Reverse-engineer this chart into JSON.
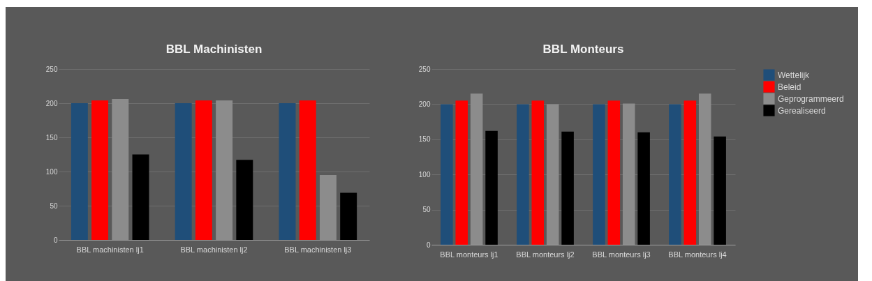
{
  "chart_data": [
    {
      "type": "bar",
      "title": "BBL Machinisten",
      "categories": [
        "BBL machinisten lj1",
        "BBL machinisten lj2",
        "BBL machinisten lj3"
      ],
      "series": [
        {
          "name": "Wettelijk",
          "color": "#1f4e79",
          "values": [
            200,
            200,
            200
          ]
        },
        {
          "name": "Beleid",
          "color": "#ff0000",
          "values": [
            204,
            204,
            204
          ]
        },
        {
          "name": "Geprogrammeerd",
          "color": "#8c8c8c",
          "values": [
            206,
            204,
            95
          ]
        },
        {
          "name": "Gerealiseerd",
          "color": "#000000",
          "values": [
            125,
            117,
            69
          ]
        }
      ],
      "ylim": [
        0,
        250
      ],
      "yticks": [
        0,
        50,
        100,
        150,
        200,
        250
      ],
      "grid": "y",
      "legend": "right"
    },
    {
      "type": "bar",
      "title": "BBL Monteurs",
      "categories": [
        "BBL monteurs lj1",
        "BBL monteurs lj2",
        "BBL monteurs lj3",
        "BBL monteurs lj4"
      ],
      "series": [
        {
          "name": "Wettelijk",
          "color": "#1f4e79",
          "values": [
            200,
            200,
            200,
            200
          ]
        },
        {
          "name": "Beleid",
          "color": "#ff0000",
          "values": [
            205,
            205,
            205,
            205
          ]
        },
        {
          "name": "Geprogrammeerd",
          "color": "#8c8c8c",
          "values": [
            215,
            200,
            201,
            215
          ]
        },
        {
          "name": "Gerealiseerd",
          "color": "#000000",
          "values": [
            162,
            161,
            160,
            154
          ]
        }
      ],
      "ylim": [
        0,
        250
      ],
      "yticks": [
        0,
        50,
        100,
        150,
        200,
        250
      ],
      "grid": "y",
      "legend": "right"
    }
  ]
}
